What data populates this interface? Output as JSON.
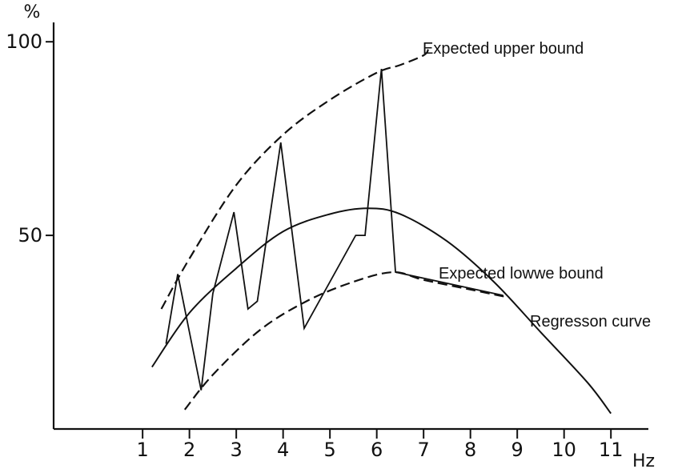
{
  "chart_data": {
    "type": "line",
    "title": "",
    "xlabel": "Hz",
    "ylabel": "%",
    "xlim": [
      -0.9,
      11.8
    ],
    "ylim": [
      0,
      105
    ],
    "x_ticks": [
      1,
      2,
      3,
      4,
      5,
      6,
      7,
      8,
      9,
      10,
      11
    ],
    "x_tick_labels": [
      "1",
      "2",
      "3",
      "4",
      "5",
      "6",
      "7",
      "8",
      "9",
      "10",
      "11"
    ],
    "y_ticks": [
      50,
      100
    ],
    "y_tick_labels": [
      "50",
      "100"
    ],
    "grid": false,
    "legend": "none",
    "series": [
      {
        "name": "Expected upper bound",
        "style": "dashed",
        "x": [
          1.4,
          2.0,
          3.0,
          4.0,
          5.0,
          6.0,
          6.5,
          7.0,
          7.1
        ],
        "y": [
          31,
          44,
          63,
          76,
          85,
          92,
          94,
          96.5,
          98
        ]
      },
      {
        "name": "Regresson curve",
        "style": "solid",
        "x": [
          1.2,
          2.0,
          3.0,
          4.0,
          5.0,
          5.8,
          6.5,
          7.5,
          8.5,
          9.5,
          10.5,
          11.0
        ],
        "y": [
          16,
          30,
          41.5,
          51,
          55.5,
          57,
          55.5,
          48.5,
          38,
          25,
          12,
          4
        ]
      },
      {
        "name": "Expected lowwe bound",
        "style": "dashed",
        "x": [
          1.9,
          2.5,
          3.5,
          4.5,
          5.5,
          6.35,
          7.0,
          8.0,
          8.8
        ],
        "y": [
          5,
          14,
          25.5,
          33,
          38,
          40.5,
          38.5,
          36,
          34
        ]
      },
      {
        "name": "",
        "style": "solid",
        "x": [
          1.5,
          1.75,
          2.25,
          2.5,
          2.95,
          3.25,
          3.45,
          3.95,
          4.45,
          5.55,
          5.75,
          6.1,
          6.4,
          8.7
        ],
        "y": [
          22,
          40,
          10,
          35,
          56,
          31,
          33,
          74,
          26,
          50,
          50,
          93,
          40.5,
          34.5
        ]
      }
    ],
    "annotations": [
      {
        "text": "Expected upper bound"
      },
      {
        "text": "Expected lowwe bound"
      },
      {
        "text": "Regresson curve"
      }
    ]
  }
}
